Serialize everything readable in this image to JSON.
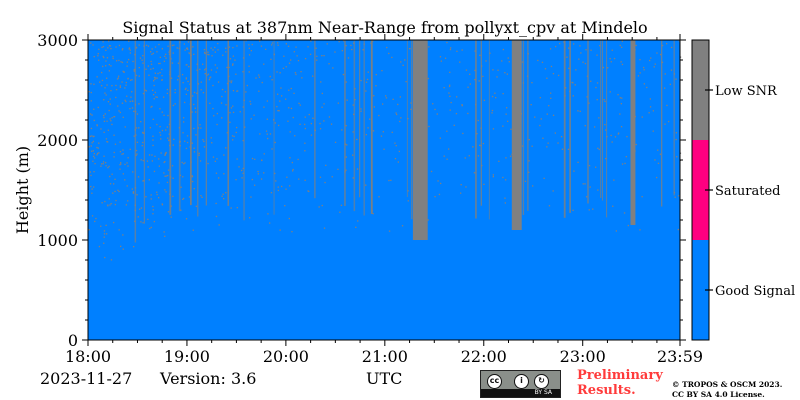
{
  "chart_data": {
    "type": "heatmap",
    "title": "Signal Status at 387nm Near-Range from pollyxt_cpv at Mindelo",
    "ylabel": "Height (m)",
    "xlabel": "UTC",
    "x_ticks": [
      "18:00",
      "19:00",
      "20:00",
      "21:00",
      "22:00",
      "23:00",
      "23:59"
    ],
    "x_range": [
      "18:00",
      "23:59"
    ],
    "y_ticks": [
      0,
      1000,
      2000,
      3000
    ],
    "ylim": [
      0,
      3000
    ],
    "colorbar": {
      "categories": [
        {
          "label": "Good Signal",
          "color": "#0080ff"
        },
        {
          "label": "Saturated",
          "color": "#ff0080"
        },
        {
          "label": "Low SNR",
          "color": "#808080"
        }
      ],
      "placement": "right"
    },
    "dense_low_snr_intervals": [
      {
        "start": "21:17",
        "end": "21:26",
        "min_height": 1000
      },
      {
        "start": "22:17",
        "end": "22:23",
        "min_height": 1100
      },
      {
        "start": "23:29",
        "end": "23:32",
        "min_height": 1150
      }
    ],
    "noise_onset_height_m": {
      "18:00": 800,
      "19:00": 1100,
      "20:00": 1200,
      "23:59": 1200
    }
  },
  "footer": {
    "date": "2023-11-27",
    "version": "Version: 3.6",
    "utc": "UTC",
    "preliminary": [
      "Preliminary",
      "Results."
    ],
    "copyright": [
      "© TROPOS & OSCM 2023.",
      "CC BY SA 4.0 License."
    ],
    "cc_badge": {
      "icons": [
        "cc-icon",
        "by-icon",
        "sa-icon"
      ],
      "label": "BY SA"
    }
  }
}
